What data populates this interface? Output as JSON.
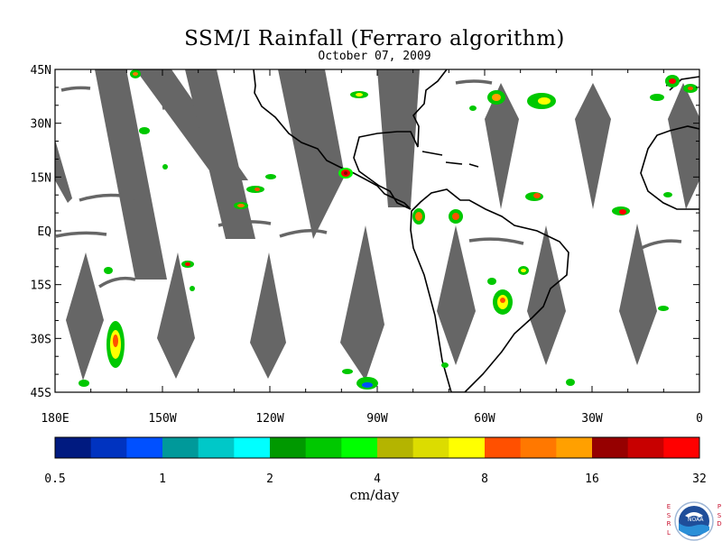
{
  "title": "SSM/I Rainfall (Ferraro algorithm)",
  "date": "October 07, 2009",
  "map": {
    "lat_labels": [
      "45N",
      "30N",
      "15N",
      "EQ",
      "15S",
      "30S",
      "45S"
    ],
    "lon_labels": [
      "180E",
      "150W",
      "120W",
      "90W",
      "60W",
      "30W",
      "0"
    ],
    "lat_range": [
      -45,
      45
    ],
    "lon_range": [
      -180,
      0
    ],
    "no_data_color": "#666666",
    "land_outline_color": "#000000"
  },
  "colorbar": {
    "colors": [
      "#001a80",
      "#0033c0",
      "#0050ff",
      "#00999a",
      "#00c8c8",
      "#00ffff",
      "#009900",
      "#00c800",
      "#00ff00",
      "#b4b400",
      "#dcdc00",
      "#ffff00",
      "#ff5000",
      "#ff7800",
      "#ffa000",
      "#960000",
      "#c80000",
      "#ff0000"
    ],
    "tick_labels": [
      "0.5",
      "1",
      "2",
      "4",
      "8",
      "16",
      "32"
    ],
    "units": "cm/day"
  },
  "logo": {
    "left_letters": [
      "E",
      "S",
      "R",
      "L"
    ],
    "right_letters": [
      "P",
      "S",
      "D"
    ],
    "text": "NOAA"
  }
}
